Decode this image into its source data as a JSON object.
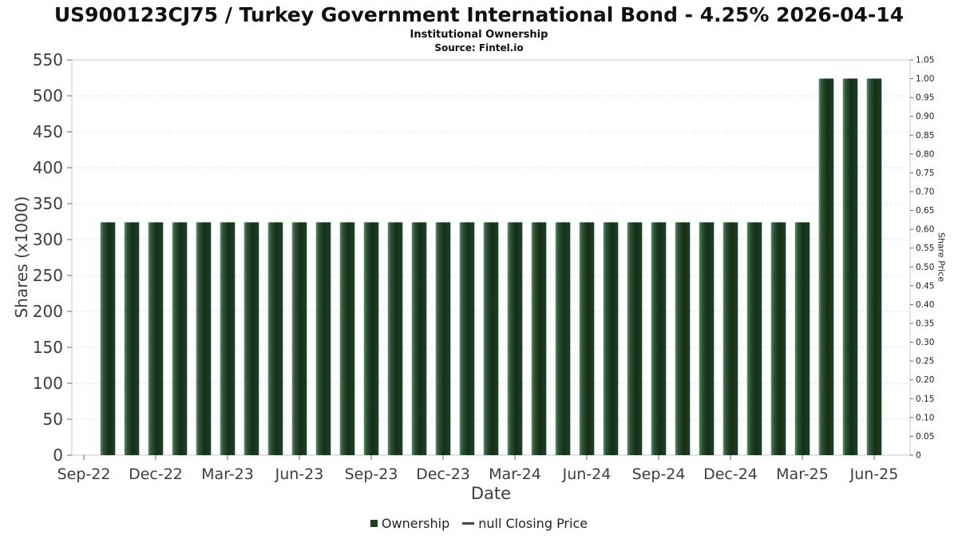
{
  "header": {
    "title": "US900123CJ75 / Turkey Government International Bond - 4.25% 2026-04-14",
    "subtitle": "Institutional Ownership",
    "source": "Source: Fintel.io"
  },
  "legend": {
    "ownership_label": "Ownership",
    "price_label": "null Closing Price"
  },
  "colors": {
    "bar_solid": "#1d3d24",
    "bar_gradient": [
      "#6a9070",
      "#2f5637",
      "#142f19",
      "#1e4024"
    ],
    "grid": "#d9d9d9",
    "border": "#c9c9c9",
    "tick": "#666666",
    "text": "#3d3d3d",
    "right_text": "#222222"
  },
  "chart_data": {
    "type": "bar",
    "title": "US900123CJ75 / Turkey Government International Bond - 4.25% 2026-04-14",
    "subtitle": "Institutional Ownership",
    "source": "Source: Fintel.io",
    "xlabel": "Date",
    "ylabel_left": "Shares (x1000)",
    "ylabel_right": "Share Price",
    "ylim_left": [
      0,
      550
    ],
    "ytick_step_left": 50,
    "ylim_right": [
      0,
      1.05
    ],
    "ytick_step_right": 0.05,
    "grid": "horizontal-dashed",
    "legend_position": "bottom-center",
    "x_tick_labels": [
      "Sep-22",
      "Dec-22",
      "Mar-23",
      "Jun-23",
      "Sep-23",
      "Dec-23",
      "Mar-24",
      "Jun-24",
      "Sep-24",
      "Dec-24",
      "Mar-25",
      "Jun-25"
    ],
    "categories": [
      "Oct-22",
      "Nov-22",
      "Dec-22",
      "Jan-23",
      "Feb-23",
      "Mar-23",
      "Apr-23",
      "May-23",
      "Jun-23",
      "Jul-23",
      "Aug-23",
      "Sep-23",
      "Oct-23",
      "Nov-23",
      "Dec-23",
      "Jan-24",
      "Feb-24",
      "Mar-24",
      "Apr-24",
      "May-24",
      "Jun-24",
      "Jul-24",
      "Aug-24",
      "Sep-24",
      "Oct-24",
      "Nov-24",
      "Dec-24",
      "Jan-25",
      "Feb-25",
      "Mar-25",
      "Apr-25",
      "May-25",
      "Jun-25"
    ],
    "series": [
      {
        "name": "Ownership",
        "values": [
          324,
          324,
          324,
          324,
          324,
          324,
          324,
          324,
          324,
          324,
          324,
          324,
          324,
          324,
          324,
          324,
          324,
          324,
          324,
          324,
          324,
          324,
          324,
          324,
          324,
          324,
          324,
          324,
          324,
          324,
          524,
          524,
          524
        ]
      }
    ],
    "price_series_shown": "null Closing Price"
  }
}
